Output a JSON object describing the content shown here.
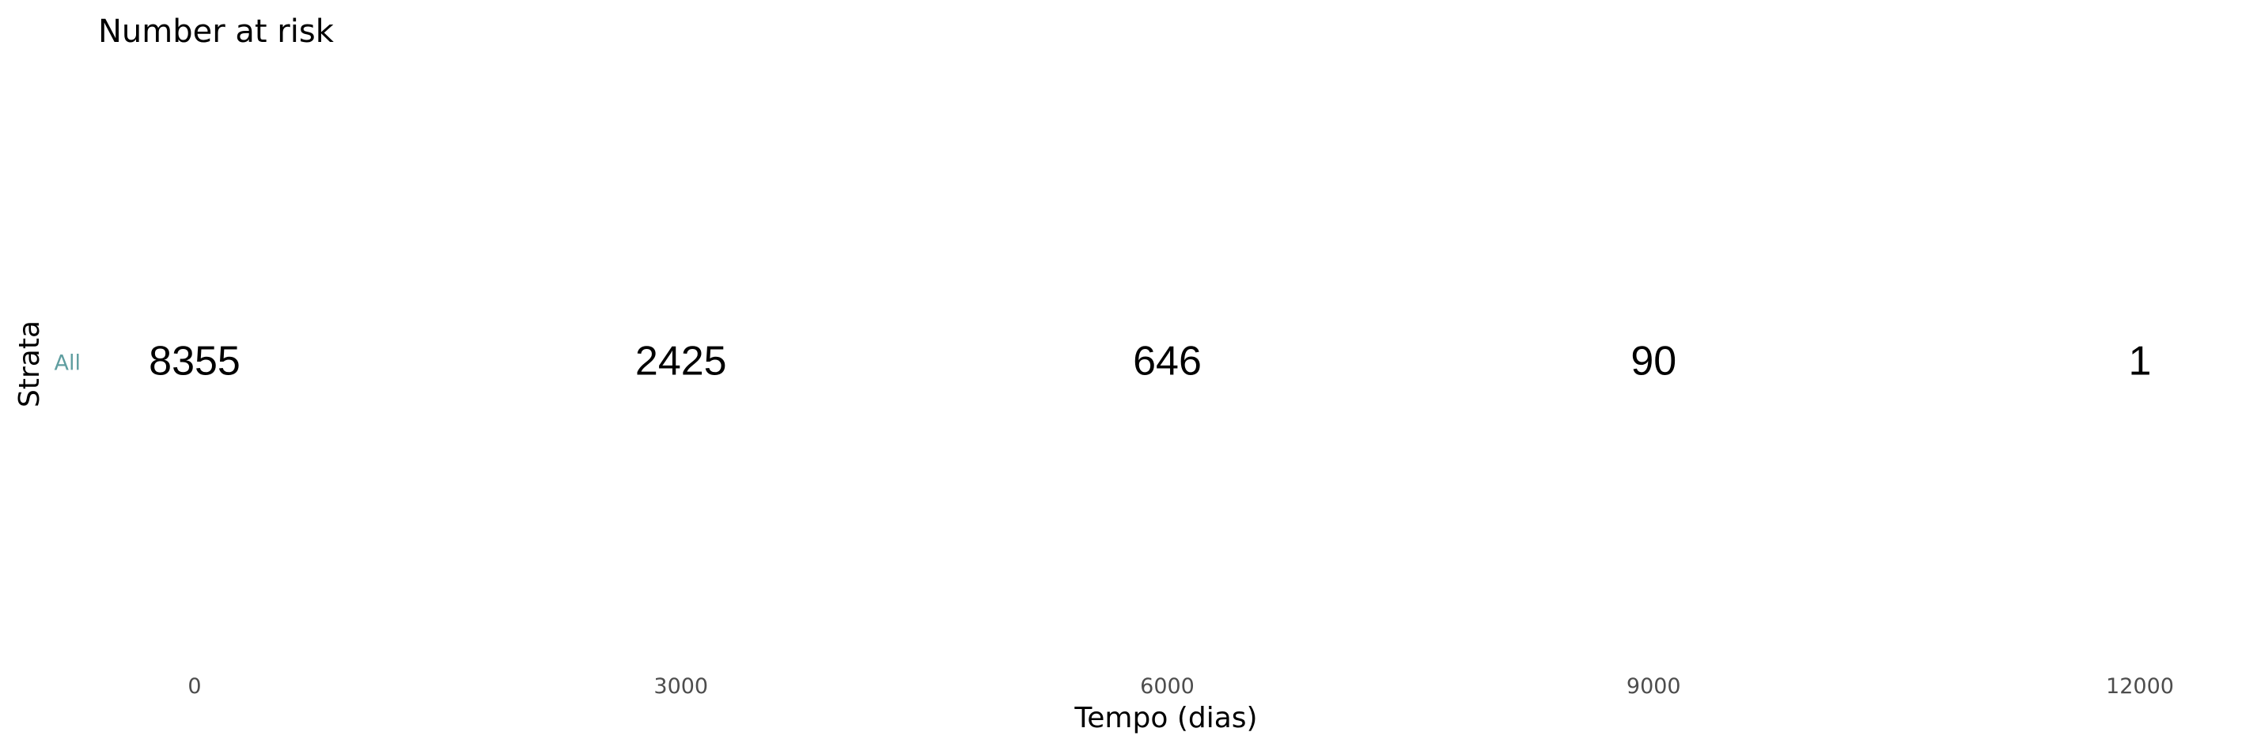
{
  "chart_data": {
    "type": "table",
    "title": "Number at risk",
    "xlabel": "Tempo (dias)",
    "ylabel": "Strata",
    "x_ticks": [
      "0",
      "3000",
      "6000",
      "9000",
      "12000"
    ],
    "xlim": [
      0,
      12000
    ],
    "grid": false,
    "strata": [
      {
        "name": "All",
        "color": "#5f9ea0",
        "times": [
          0,
          3000,
          6000,
          9000,
          12000
        ],
        "values": [
          8355,
          2425,
          646,
          90,
          1
        ]
      }
    ]
  }
}
